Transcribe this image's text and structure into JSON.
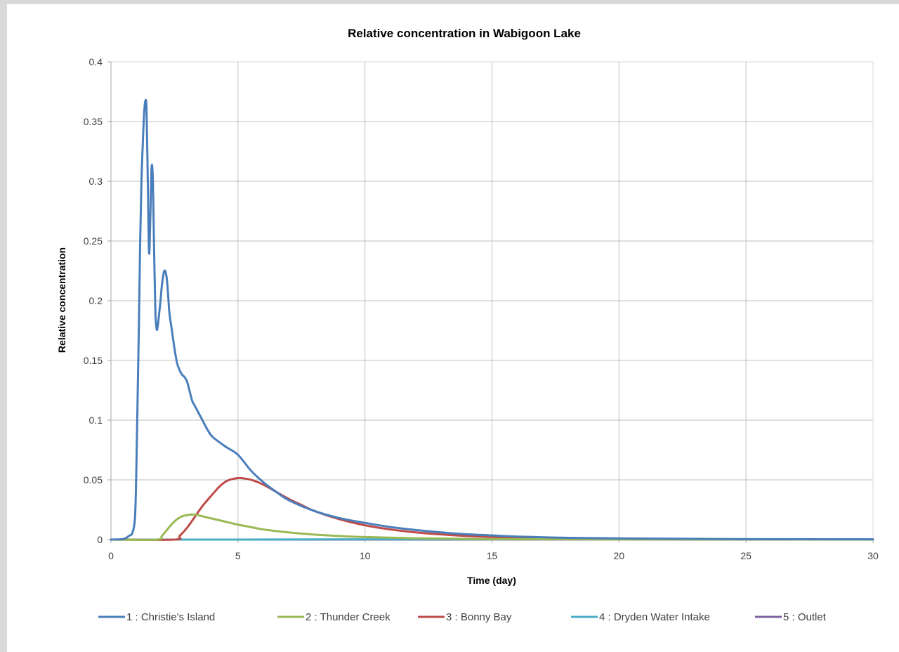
{
  "chart_data": {
    "type": "line",
    "title": "Relative concentration in Wabigoon Lake",
    "xlabel": "Time (day)",
    "ylabel": "Relative concentration",
    "xlim": [
      0,
      30
    ],
    "ylim": [
      0,
      0.4
    ],
    "x_ticks": [
      0,
      5,
      10,
      15,
      20,
      25,
      30
    ],
    "x_tick_labels": [
      "0",
      "5",
      "10",
      "15",
      "20",
      "25",
      "30"
    ],
    "y_ticks": [
      0,
      0.05,
      0.1,
      0.15,
      0.2,
      0.25,
      0.3,
      0.35,
      0.4
    ],
    "y_tick_labels": [
      "0",
      "0.05",
      "0.1",
      "0.15",
      "0.2",
      "0.25",
      "0.3",
      "0.35",
      "0.4"
    ],
    "grid": true,
    "legend_position": "bottom",
    "series": [
      {
        "name": "1 : Christie's Island",
        "color": "#4a7ebb",
        "x": [
          0,
          0.5,
          0.7,
          0.85,
          0.95,
          1.0,
          1.05,
          1.1,
          1.15,
          1.2,
          1.25,
          1.3,
          1.35,
          1.4,
          1.45,
          1.5,
          1.55,
          1.6,
          1.65,
          1.7,
          1.75,
          1.8,
          1.85,
          1.9,
          1.95,
          2.0,
          2.05,
          2.1,
          2.15,
          2.2,
          2.25,
          2.3,
          2.4,
          2.5,
          2.6,
          2.7,
          2.8,
          2.9,
          3.0,
          3.1,
          3.2,
          3.3,
          3.4,
          3.5,
          3.6,
          3.8,
          4.0,
          4.5,
          5.0,
          5.5,
          6.0,
          6.5,
          7.0,
          8.0,
          9.0,
          10.0,
          11.0,
          12.0,
          13.0,
          14.0,
          15.0,
          16.0,
          18.0,
          20.0,
          25.0,
          30.0
        ],
        "y": [
          0,
          0.0005,
          0.003,
          0.006,
          0.02,
          0.06,
          0.12,
          0.18,
          0.25,
          0.3,
          0.33,
          0.355,
          0.367,
          0.36,
          0.3,
          0.24,
          0.27,
          0.312,
          0.3,
          0.24,
          0.19,
          0.176,
          0.18,
          0.19,
          0.2,
          0.212,
          0.22,
          0.225,
          0.224,
          0.218,
          0.205,
          0.19,
          0.175,
          0.16,
          0.148,
          0.142,
          0.138,
          0.136,
          0.132,
          0.124,
          0.116,
          0.112,
          0.108,
          0.104,
          0.1,
          0.092,
          0.086,
          0.078,
          0.071,
          0.058,
          0.048,
          0.04,
          0.033,
          0.024,
          0.018,
          0.014,
          0.0105,
          0.008,
          0.006,
          0.0045,
          0.0035,
          0.0025,
          0.0015,
          0.001,
          0.0004,
          0.0002
        ]
      },
      {
        "name": "2 : Thunder Creek",
        "color": "#98b954",
        "x": [
          0,
          1.8,
          2.0,
          2.2,
          2.4,
          2.6,
          2.8,
          3.0,
          3.2,
          3.4,
          3.6,
          3.8,
          4.0,
          4.5,
          5.0,
          5.5,
          6.0,
          7.0,
          8.0,
          9.0,
          10.0,
          12.0,
          15.0,
          20.0,
          30.0
        ],
        "y": [
          0,
          0,
          0.003,
          0.008,
          0.013,
          0.017,
          0.0195,
          0.0205,
          0.021,
          0.0205,
          0.0195,
          0.0185,
          0.0175,
          0.015,
          0.0125,
          0.0105,
          0.0085,
          0.006,
          0.0042,
          0.003,
          0.0021,
          0.0011,
          0.0004,
          0.0001,
          0
        ]
      },
      {
        "name": "3 : Bonny Bay",
        "color": "#be4b48",
        "x": [
          0,
          2.5,
          2.7,
          3.0,
          3.3,
          3.6,
          4.0,
          4.3,
          4.6,
          5.0,
          5.3,
          5.6,
          6.0,
          6.5,
          7.0,
          7.5,
          8.0,
          9.0,
          10.0,
          11.0,
          12.0,
          13.0,
          14.0,
          15.0,
          16.0,
          18.0,
          20.0,
          25.0,
          30.0
        ],
        "y": [
          0,
          0,
          0.003,
          0.01,
          0.019,
          0.028,
          0.038,
          0.045,
          0.0495,
          0.0515,
          0.051,
          0.0495,
          0.046,
          0.04,
          0.034,
          0.029,
          0.024,
          0.017,
          0.012,
          0.0085,
          0.006,
          0.0043,
          0.003,
          0.0022,
          0.0015,
          0.0008,
          0.0004,
          0.0001,
          0
        ]
      },
      {
        "name": "4 : Dryden Water Intake",
        "color": "#4bacc6",
        "x": [
          0,
          5.0,
          10.0,
          20.0,
          30.0
        ],
        "y": [
          0,
          0,
          0.0002,
          0.0003,
          0.0001
        ]
      },
      {
        "name": "5 : Outlet",
        "color": "#7d60a0",
        "x": [
          0,
          10.0,
          20.0,
          30.0
        ],
        "y": [
          0,
          0,
          0.0001,
          0.0001
        ]
      }
    ]
  }
}
